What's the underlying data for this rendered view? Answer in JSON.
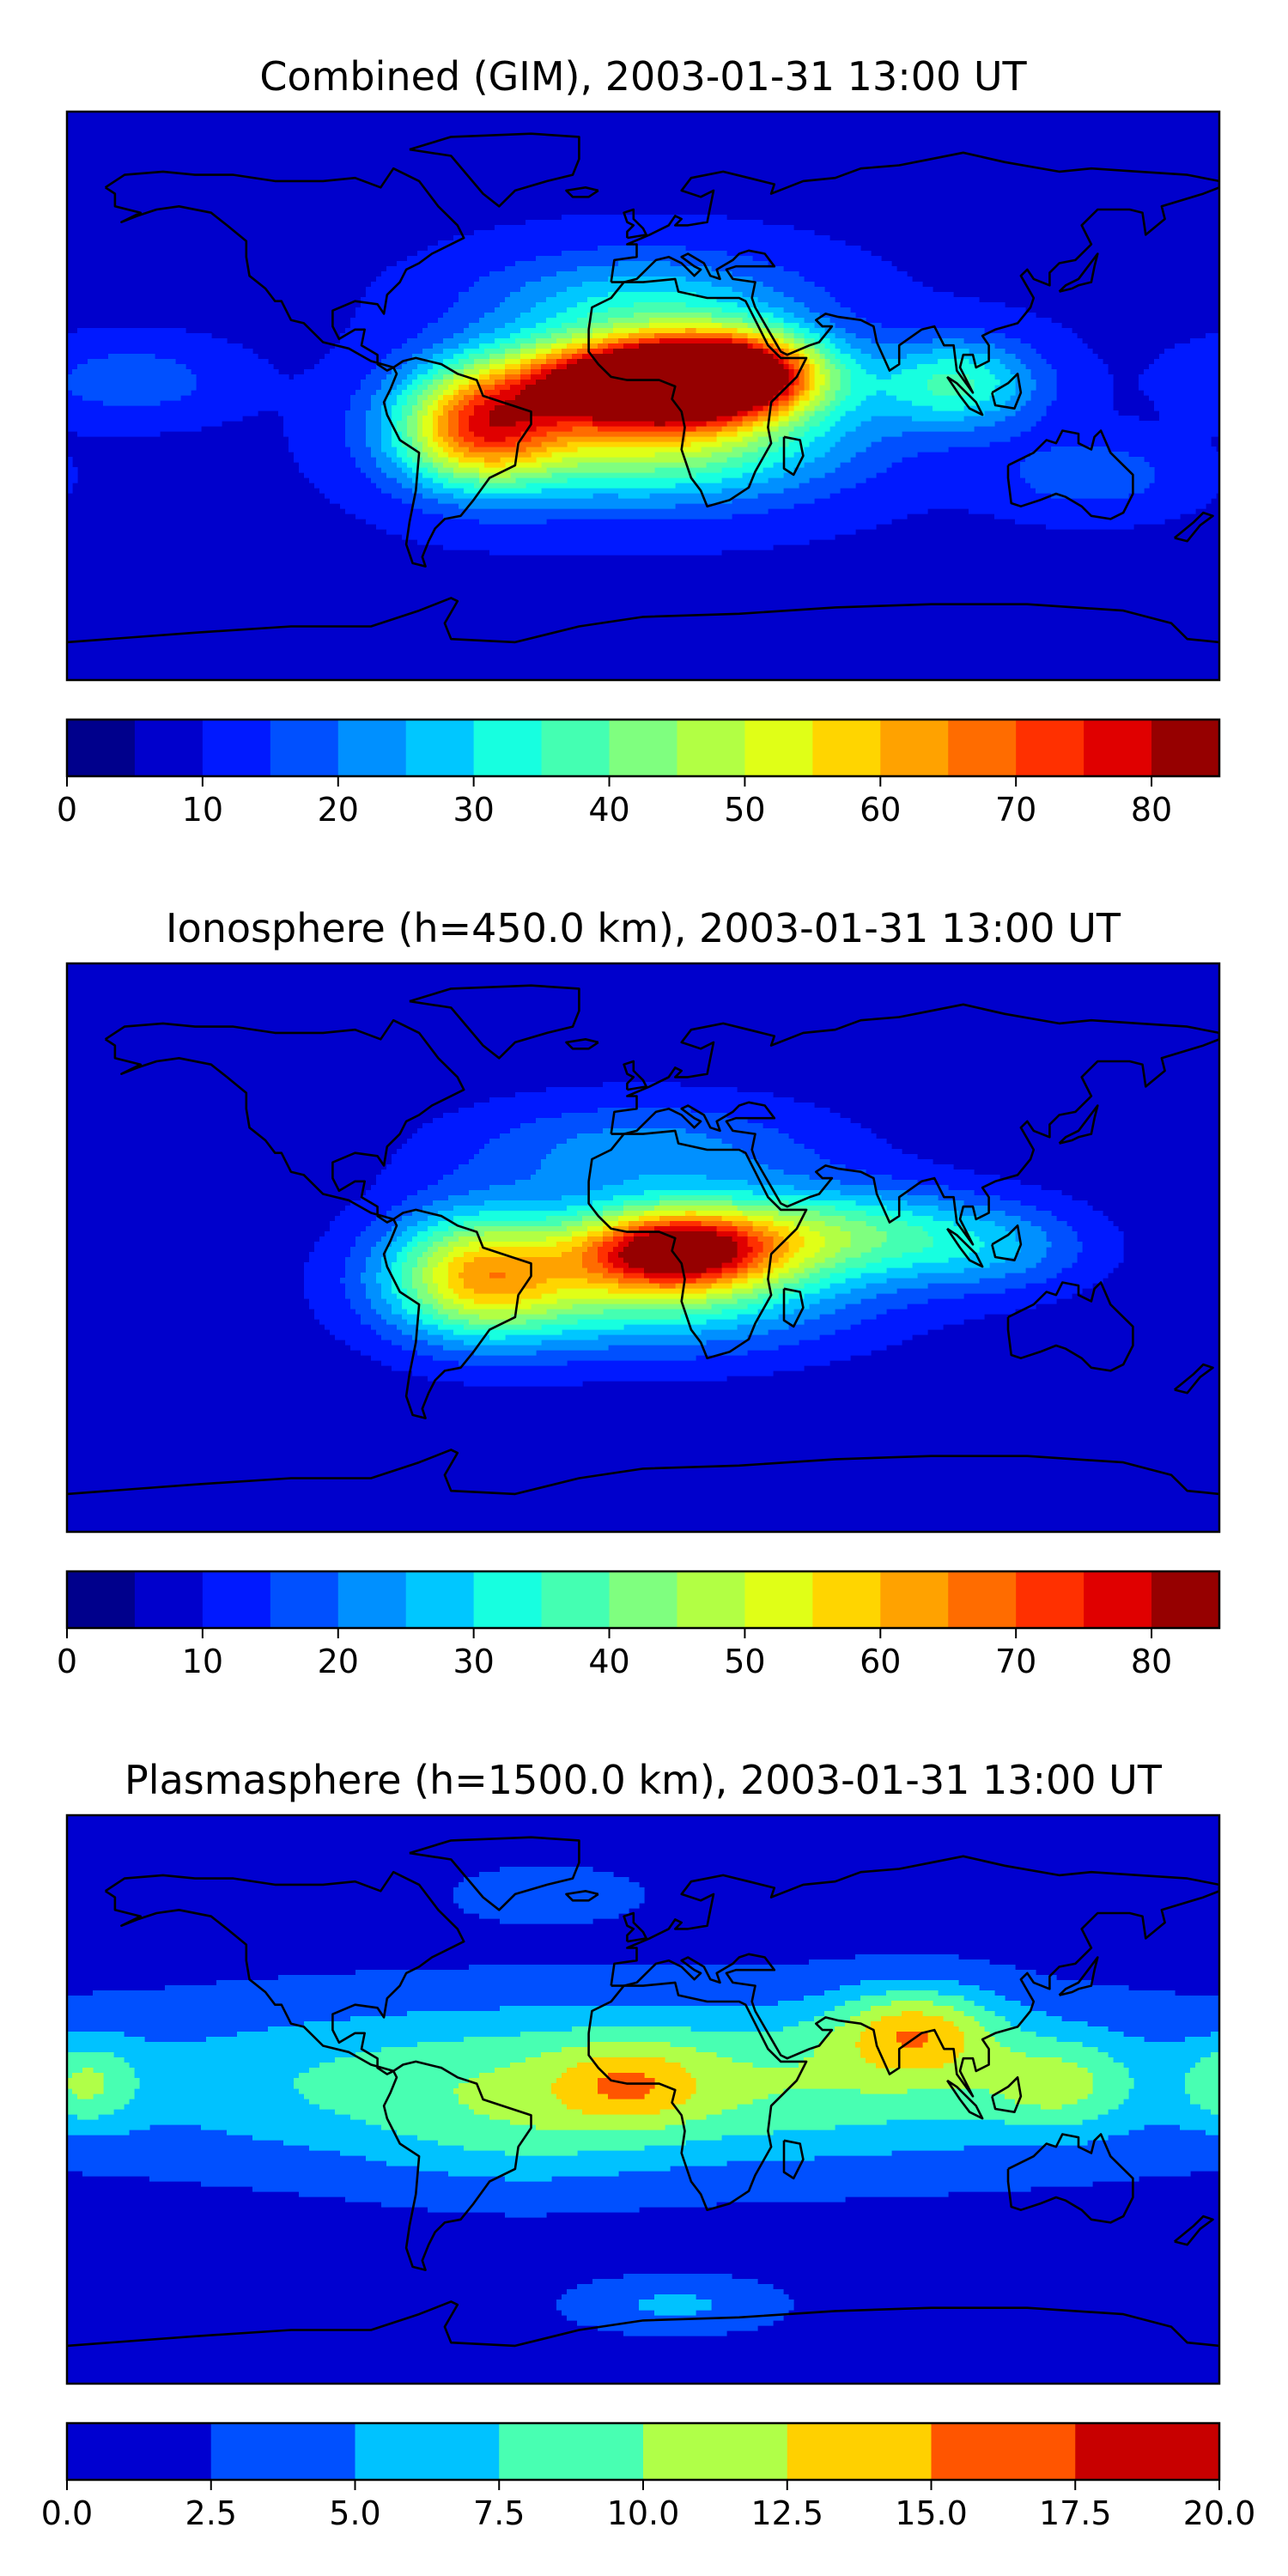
{
  "chart_data": [
    {
      "type": "heatmap",
      "title": "Combined (GIM), 2003-01-31 13:00 UT",
      "xlabel": "",
      "ylabel": "",
      "grid": false,
      "colorbar": {
        "orientation": "horizontal",
        "placement": "below",
        "levels": [
          0,
          5,
          10,
          15,
          20,
          25,
          30,
          35,
          40,
          45,
          50,
          55,
          60,
          65,
          70,
          75,
          80,
          85
        ],
        "ticks": [
          0,
          10,
          20,
          30,
          40,
          50,
          60,
          70,
          80
        ],
        "tick_labels": [
          "0",
          "10",
          "20",
          "30",
          "40",
          "50",
          "60",
          "70",
          "80"
        ],
        "colors": [
          "#00008c",
          "#0000cc",
          "#0019ff",
          "#0050ff",
          "#0090ff",
          "#00c7ff",
          "#17ffe0",
          "#44ffb2",
          "#7fff7f",
          "#b2ff44",
          "#e0ff17",
          "#ffd500",
          "#ffa200",
          "#ff6c00",
          "#ff3000",
          "#e00000",
          "#960000"
        ]
      },
      "field": {
        "background": 9,
        "features": [
          {
            "lon": 0,
            "lat": 5,
            "peak": 80,
            "sx": 28,
            "sy": 9
          },
          {
            "lon": 28,
            "lat": 8,
            "peak": 55,
            "sx": 20,
            "sy": 9
          },
          {
            "lon": -52,
            "lat": -10,
            "peak": 48,
            "sx": 18,
            "sy": 13
          },
          {
            "lon": 2,
            "lat": -12,
            "peak": 42,
            "sx": 40,
            "sy": 14
          },
          {
            "lon": 98,
            "lat": 4,
            "peak": 26,
            "sx": 18,
            "sy": 10
          },
          {
            "lon": 0,
            "lat": 28,
            "peak": 22,
            "sx": 35,
            "sy": 12
          },
          {
            "lon": 140,
            "lat": -25,
            "peak": 10,
            "sx": 20,
            "sy": 8
          },
          {
            "lon": -160,
            "lat": 5,
            "peak": 10,
            "sx": 20,
            "sy": 8
          }
        ]
      }
    },
    {
      "type": "heatmap",
      "title": "Ionosphere  (h=450.0 km), 2003-01-31 13:00 UT",
      "xlabel": "",
      "ylabel": "",
      "grid": false,
      "colorbar": {
        "orientation": "horizontal",
        "placement": "below",
        "levels": [
          0,
          5,
          10,
          15,
          20,
          25,
          30,
          35,
          40,
          45,
          50,
          55,
          60,
          65,
          70,
          75,
          80,
          85
        ],
        "ticks": [
          0,
          10,
          20,
          30,
          40,
          50,
          60,
          70,
          80
        ],
        "tick_labels": [
          "0",
          "10",
          "20",
          "30",
          "40",
          "50",
          "60",
          "70",
          "80"
        ],
        "colors": [
          "#00008c",
          "#0000cc",
          "#0019ff",
          "#0050ff",
          "#0090ff",
          "#00c7ff",
          "#17ffe0",
          "#44ffb2",
          "#7fff7f",
          "#b2ff44",
          "#e0ff17",
          "#ffd500",
          "#ffa200",
          "#ff6c00",
          "#ff3000",
          "#e00000",
          "#960000"
        ]
      },
      "field": {
        "background": 7,
        "features": [
          {
            "lon": 10,
            "lat": 0,
            "peak": 60,
            "sx": 22,
            "sy": 9
          },
          {
            "lon": -52,
            "lat": -8,
            "peak": 40,
            "sx": 20,
            "sy": 14
          },
          {
            "lon": 0,
            "lat": -12,
            "peak": 32,
            "sx": 45,
            "sy": 14
          },
          {
            "lon": 60,
            "lat": 5,
            "peak": 28,
            "sx": 30,
            "sy": 10
          },
          {
            "lon": 0,
            "lat": 30,
            "peak": 16,
            "sx": 40,
            "sy": 12
          },
          {
            "lon": 110,
            "lat": 0,
            "peak": 14,
            "sx": 22,
            "sy": 10
          }
        ]
      }
    },
    {
      "type": "heatmap",
      "title": "Plasmasphere (h=1500.0 km), 2003-01-31 13:00 UT",
      "xlabel": "",
      "ylabel": "",
      "grid": false,
      "colorbar": {
        "orientation": "horizontal",
        "placement": "below",
        "levels": [
          0,
          2.5,
          5,
          7.5,
          10,
          12.5,
          15,
          17.5,
          20
        ],
        "ticks": [
          0,
          2.5,
          5,
          7.5,
          10,
          12.5,
          15,
          17.5,
          20
        ],
        "tick_labels": [
          "0.0",
          "2.5",
          "5.0",
          "7.5",
          "10.0",
          "12.5",
          "15.0",
          "17.5",
          "20.0"
        ],
        "colors": [
          "#0000d0",
          "#0050ff",
          "#00c2ff",
          "#48ffb2",
          "#b0ff48",
          "#ffd000",
          "#ff5500",
          "#c80000"
        ]
      },
      "field": {
        "background": 1.5,
        "features": [
          {
            "lon": 0,
            "lat": 5,
            "peak": 9,
            "sx": 120,
            "sy": 18
          },
          {
            "lon": 85,
            "lat": 22,
            "peak": 9,
            "sx": 18,
            "sy": 10
          },
          {
            "lon": 130,
            "lat": 5,
            "peak": 5,
            "sx": 16,
            "sy": 10
          },
          {
            "lon": -5,
            "lat": 5,
            "peak": 5,
            "sx": 16,
            "sy": 9
          },
          {
            "lon": -175,
            "lat": 5,
            "peak": 6,
            "sx": 12,
            "sy": 10
          },
          {
            "lon": -40,
            "lat": -15,
            "peak": 2,
            "sx": 30,
            "sy": 12
          },
          {
            "lon": 10,
            "lat": -65,
            "peak": 4,
            "sx": 22,
            "sy": 6
          },
          {
            "lon": -30,
            "lat": 65,
            "peak": 3,
            "sx": 20,
            "sy": 6
          }
        ]
      }
    }
  ],
  "colors": {
    "coastline": "#000000",
    "frame": "#000000"
  }
}
